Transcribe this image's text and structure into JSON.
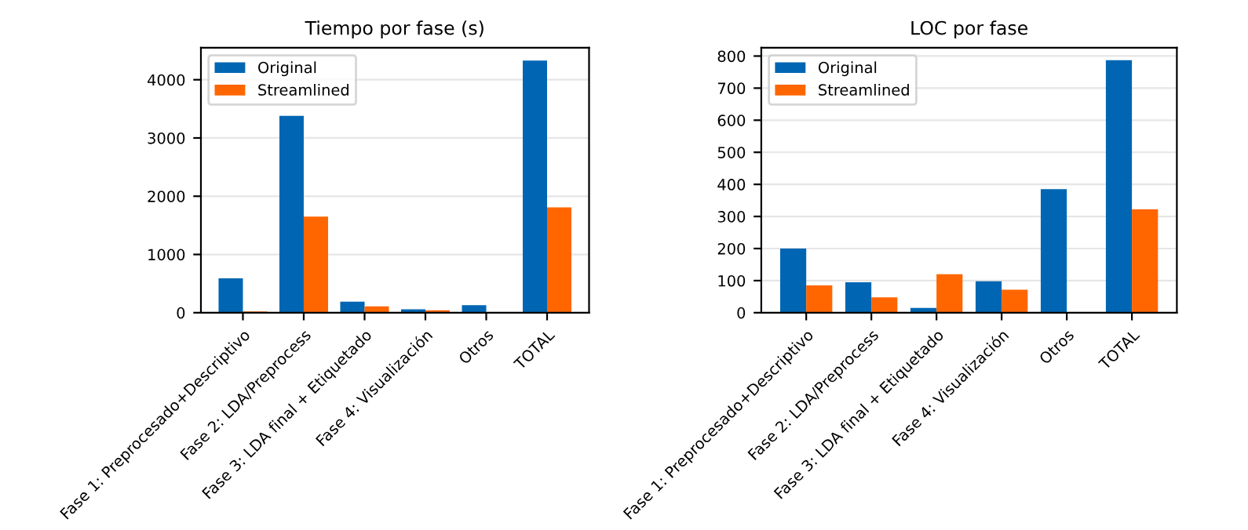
{
  "chart_data": [
    {
      "type": "bar",
      "title": "Tiempo por fase (s)",
      "categories": [
        "Fase 1: Preprocesado+Descriptivo",
        "Fase 2: LDA/Preprocess",
        "Fase 3: LDA final + Etiquetado",
        "Fase 4: Visualización",
        "Otros",
        "TOTAL"
      ],
      "series": [
        {
          "name": "Original",
          "color": "#0066b3",
          "values": [
            590,
            3380,
            190,
            60,
            130,
            4330
          ]
        },
        {
          "name": "Streamlined",
          "color": "#ff6600",
          "values": [
            20,
            1650,
            110,
            40,
            0,
            1810
          ]
        }
      ],
      "ylim": [
        0,
        4550
      ],
      "yticks": [
        0,
        1000,
        2000,
        3000,
        4000
      ],
      "grid": "y",
      "legend": "top left"
    },
    {
      "type": "bar",
      "title": "LOC por fase",
      "categories": [
        "Fase 1: Preprocesado+Descriptivo",
        "Fase 2: LDA/Preprocess",
        "Fase 3: LDA final + Etiquetado",
        "Fase 4: Visualización",
        "Otros",
        "TOTAL"
      ],
      "series": [
        {
          "name": "Original",
          "color": "#0066b3",
          "values": [
            200,
            95,
            15,
            98,
            385,
            787
          ]
        },
        {
          "name": "Streamlined",
          "color": "#ff6600",
          "values": [
            85,
            48,
            120,
            72,
            0,
            322
          ]
        }
      ],
      "ylim": [
        0,
        826
      ],
      "yticks": [
        0,
        100,
        200,
        300,
        400,
        500,
        600,
        700,
        800
      ],
      "grid": "y",
      "legend": "top left"
    }
  ]
}
